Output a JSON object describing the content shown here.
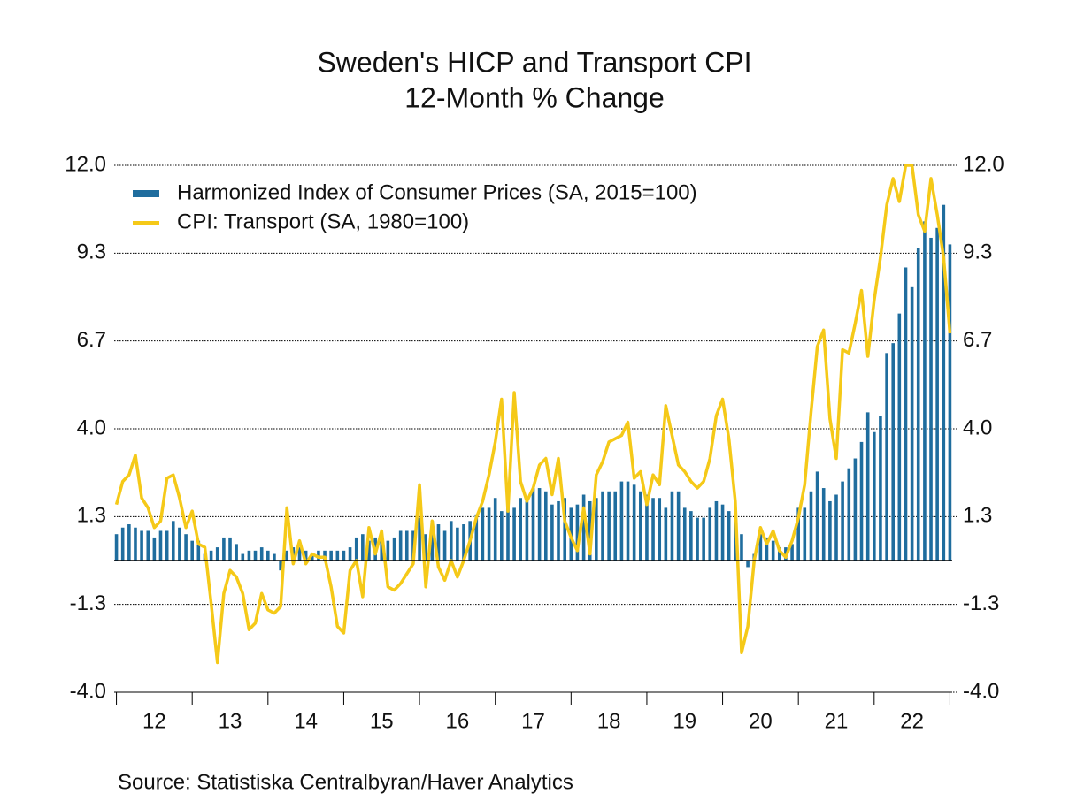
{
  "chart_data": {
    "type": "bar-line",
    "title": "Sweden's HICP and Transport CPI",
    "subtitle": "12-Month % Change",
    "source": "Source:  Statistiska Centralbyran/Haver Analytics",
    "x": [
      2012,
      2012.083,
      2012.167,
      2012.25,
      2012.333,
      2012.417,
      2012.5,
      2012.583,
      2012.667,
      2012.75,
      2012.833,
      2012.917,
      2013,
      2013.083,
      2013.167,
      2013.25,
      2013.333,
      2013.417,
      2013.5,
      2013.583,
      2013.667,
      2013.75,
      2013.833,
      2013.917,
      2014,
      2014.083,
      2014.167,
      2014.25,
      2014.333,
      2014.417,
      2014.5,
      2014.583,
      2014.667,
      2014.75,
      2014.833,
      2014.917,
      2015,
      2015.083,
      2015.167,
      2015.25,
      2015.333,
      2015.417,
      2015.5,
      2015.583,
      2015.667,
      2015.75,
      2015.833,
      2015.917,
      2016,
      2016.083,
      2016.167,
      2016.25,
      2016.333,
      2016.417,
      2016.5,
      2016.583,
      2016.667,
      2016.75,
      2016.833,
      2016.917,
      2017,
      2017.083,
      2017.167,
      2017.25,
      2017.333,
      2017.417,
      2017.5,
      2017.583,
      2017.667,
      2017.75,
      2017.833,
      2017.917,
      2018,
      2018.083,
      2018.167,
      2018.25,
      2018.333,
      2018.417,
      2018.5,
      2018.583,
      2018.667,
      2018.75,
      2018.833,
      2018.917,
      2019,
      2019.083,
      2019.167,
      2019.25,
      2019.333,
      2019.417,
      2019.5,
      2019.583,
      2019.667,
      2019.75,
      2019.833,
      2019.917,
      2020,
      2020.083,
      2020.167,
      2020.25,
      2020.333,
      2020.417,
      2020.5,
      2020.583,
      2020.667,
      2020.75,
      2020.833,
      2020.917,
      2021,
      2021.083,
      2021.167,
      2021.25,
      2021.333,
      2021.417,
      2021.5,
      2021.583,
      2021.667,
      2021.75,
      2021.833,
      2021.917,
      2022,
      2022.083,
      2022.167,
      2022.25,
      2022.333,
      2022.417,
      2022.5,
      2022.583,
      2022.667,
      2022.75,
      2022.833,
      2022.917,
      2023
    ],
    "series": [
      {
        "name": "Harmonized Index of Consumer Prices (SA, 2015=100)",
        "type": "bar",
        "color": "#1f6d9e",
        "values": [
          0.8,
          1.0,
          1.1,
          1.0,
          0.9,
          0.9,
          0.7,
          0.9,
          0.9,
          1.2,
          1.0,
          0.8,
          0.6,
          0.6,
          0.2,
          0.3,
          0.4,
          0.7,
          0.7,
          0.5,
          0.2,
          0.3,
          0.3,
          0.4,
          0.3,
          0.2,
          -0.3,
          0.3,
          0.4,
          0.4,
          0.3,
          0.2,
          0.3,
          0.3,
          0.3,
          0.3,
          0.3,
          0.4,
          0.7,
          0.8,
          0.6,
          0.7,
          0.6,
          0.6,
          0.7,
          0.9,
          0.9,
          0.9,
          1.3,
          0.8,
          1.2,
          1.1,
          0.9,
          1.2,
          1.0,
          1.1,
          1.2,
          1.4,
          1.6,
          1.6,
          1.9,
          1.5,
          1.9,
          1.6,
          1.9,
          1.9,
          2.2,
          2.2,
          2.1,
          1.7,
          1.8,
          1.9,
          1.6,
          1.7,
          2.0,
          1.8,
          1.9,
          2.1,
          2.1,
          2.1,
          2.4,
          2.4,
          2.3,
          2.1,
          2.0,
          1.9,
          1.9,
          1.6,
          2.1,
          2.1,
          1.6,
          1.5,
          1.3,
          1.3,
          1.6,
          1.8,
          1.7,
          1.5,
          1.2,
          0.8,
          -0.2,
          0.2,
          0.8,
          0.7,
          0.6,
          0.4,
          0.4,
          0.5,
          1.6,
          1.6,
          2.1,
          2.7,
          2.2,
          1.8,
          2.0,
          2.4,
          2.8,
          3.1,
          3.6,
          4.5,
          3.9,
          4.4,
          6.3,
          6.6,
          7.5,
          8.9,
          8.3,
          9.5,
          10.3,
          9.8,
          10.1,
          10.8,
          9.6
        ]
      },
      {
        "name": "CPI: Transport (SA, 1980=100)",
        "type": "line",
        "color": "#f5c918",
        "values": [
          1.7,
          2.4,
          2.6,
          3.2,
          1.9,
          1.6,
          1.0,
          1.2,
          2.5,
          2.6,
          1.9,
          1.0,
          1.5,
          0.5,
          0.4,
          -1.3,
          -3.1,
          -1.0,
          -0.3,
          -0.5,
          -1.0,
          -2.1,
          -1.9,
          -1.0,
          -1.5,
          -1.6,
          -1.4,
          1.6,
          -0.1,
          0.6,
          -0.1,
          0.2,
          0.1,
          0.1,
          -0.8,
          -2.0,
          -2.2,
          -0.3,
          0.0,
          -1.1,
          1.0,
          0.2,
          0.9,
          -0.8,
          -0.9,
          -0.7,
          -0.4,
          -0.1,
          2.3,
          -0.8,
          1.2,
          -0.2,
          -0.6,
          0.0,
          -0.5,
          0.0,
          0.6,
          1.3,
          1.8,
          2.6,
          3.6,
          4.9,
          1.5,
          5.1,
          2.4,
          1.8,
          2.2,
          2.9,
          3.1,
          2.0,
          3.1,
          1.2,
          0.7,
          0.3,
          1.6,
          0.2,
          2.6,
          3.0,
          3.6,
          3.7,
          3.8,
          4.2,
          2.5,
          2.7,
          1.7,
          2.6,
          2.3,
          4.7,
          3.8,
          2.9,
          2.7,
          2.4,
          2.2,
          2.4,
          3.1,
          4.4,
          4.9,
          3.7,
          1.8,
          -2.8,
          -2.0,
          0.0,
          1.0,
          0.5,
          0.9,
          0.3,
          0.1,
          0.6,
          1.3,
          2.3,
          4.5,
          6.5,
          7.0,
          4.3,
          3.1,
          6.4,
          6.3,
          7.2,
          8.2,
          6.2,
          7.9,
          9.2,
          10.8,
          11.6,
          10.9,
          12.0,
          12.0,
          10.5,
          10.0,
          11.6,
          10.5,
          9.2,
          6.9
        ]
      }
    ],
    "xlim": [
      2011.97,
      2023.03
    ],
    "xticks": [
      2012,
      2013,
      2014,
      2015,
      2016,
      2017,
      2018,
      2019,
      2020,
      2021,
      2022,
      2023
    ],
    "xticklabels": [
      {
        "value": 2012.5,
        "label": "12"
      },
      {
        "value": 2013.5,
        "label": "13"
      },
      {
        "value": 2014.5,
        "label": "14"
      },
      {
        "value": 2015.5,
        "label": "15"
      },
      {
        "value": 2016.5,
        "label": "16"
      },
      {
        "value": 2017.5,
        "label": "17"
      },
      {
        "value": 2018.5,
        "label": "18"
      },
      {
        "value": 2019.5,
        "label": "19"
      },
      {
        "value": 2020.5,
        "label": "20"
      },
      {
        "value": 2021.5,
        "label": "21"
      },
      {
        "value": 2022.5,
        "label": "22"
      }
    ],
    "ylim": [
      -4,
      12
    ],
    "yticks": [
      {
        "value": 12,
        "label": "12.0"
      },
      {
        "value": 9.333,
        "label": "9.3"
      },
      {
        "value": 6.667,
        "label": "6.7"
      },
      {
        "value": 4,
        "label": "4.0"
      },
      {
        "value": 1.333,
        "label": "1.3"
      },
      {
        "value": -1.333,
        "label": "-1.3"
      },
      {
        "value": -4,
        "label": "-4.0"
      }
    ],
    "grid": true,
    "legend": "top-left"
  }
}
